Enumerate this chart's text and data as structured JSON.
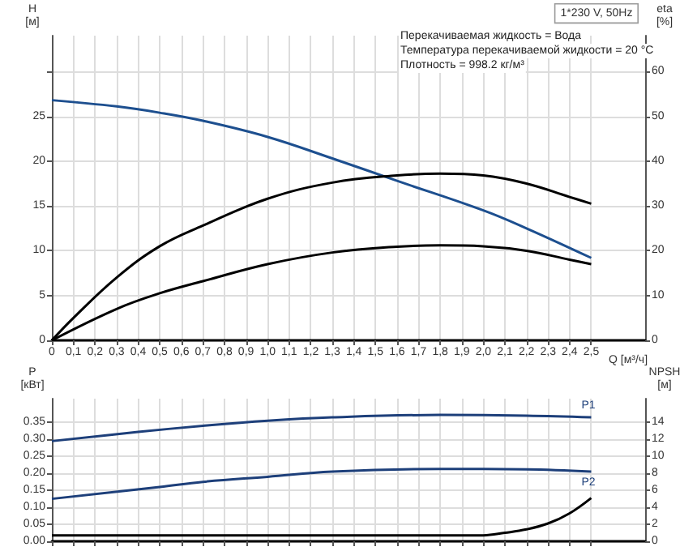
{
  "chart_data": [
    {
      "type": "line",
      "ylabel": "H\n[м]",
      "y2label": "eta\n[%]",
      "xlabel": "Q [м³/ч]",
      "annotations": [
        "1*230 V, 50Hz",
        "Перекачиваемая жидкость = Вода",
        "Температура перекачиваемой жидкости = 20 °C",
        "Плотность = 998.2 кг/м³"
      ],
      "xlim": [
        0,
        2.75
      ],
      "xticks": [
        0,
        {
          "value": 0.1,
          "label": "0,1"
        },
        {
          "value": 0.2,
          "label": "0,2"
        },
        {
          "value": 0.3,
          "label": "0,3"
        },
        {
          "value": 0.4,
          "label": "0,4"
        },
        {
          "value": 0.5,
          "label": "0,5"
        },
        {
          "value": 0.6,
          "label": "0,6"
        },
        {
          "value": 0.7,
          "label": "0,7"
        },
        {
          "value": 0.8,
          "label": "0,8"
        },
        {
          "value": 0.9,
          "label": "0,9"
        },
        {
          "value": 1.0,
          "label": "1,0"
        },
        {
          "value": 1.1,
          "label": "1,1"
        },
        {
          "value": 1.2,
          "label": "1,2"
        },
        {
          "value": 1.3,
          "label": "1,3"
        },
        {
          "value": 1.4,
          "label": "1,4"
        },
        {
          "value": 1.5,
          "label": "1,5"
        },
        {
          "value": 1.6,
          "label": "1,6"
        },
        {
          "value": 1.7,
          "label": "1,7"
        },
        {
          "value": 1.8,
          "label": "1,8"
        },
        {
          "value": 1.9,
          "label": "1,9"
        },
        {
          "value": 2.0,
          "label": "2,0"
        },
        {
          "value": 2.1,
          "label": "2,1"
        },
        {
          "value": 2.2,
          "label": "2,2"
        },
        {
          "value": 2.3,
          "label": "2,3"
        },
        {
          "value": 2.4,
          "label": "2,4"
        },
        {
          "value": 2.5,
          "label": "2,5"
        }
      ],
      "ylim": [
        0,
        34
      ],
      "yticks": [
        0,
        5,
        10,
        15,
        20,
        25,
        {
          "value": 30,
          "label": null
        }
      ],
      "y2lim": [
        0,
        68
      ],
      "y2ticks": [
        0,
        10,
        20,
        30,
        40,
        50,
        60
      ],
      "grid": true,
      "legend": false,
      "marker": "none",
      "line_style": "solid",
      "series": [
        {
          "color": "#1d4f8f",
          "x": [
            0,
            0.3,
            0.5,
            0.7,
            1.0,
            1.3,
            1.6,
            2.0,
            2.2,
            2.5
          ],
          "values": [
            26.8,
            26.1,
            25.4,
            24.5,
            22.7,
            20.3,
            17.8,
            14.5,
            12.5,
            9.2
          ]
        },
        {
          "color": "#000000",
          "axis": "y2",
          "x": [
            0,
            0.1,
            0.3,
            0.5,
            0.7,
            1.0,
            1.3,
            1.6,
            1.8,
            2.0,
            2.2,
            2.4,
            2.5
          ],
          "values": [
            0,
            5,
            14,
            21,
            25.6,
            31.6,
            35.2,
            36.8,
            37.2,
            36.8,
            35,
            32,
            30.5
          ]
        },
        {
          "color": "#000000",
          "axis": "y2",
          "x": [
            0,
            0.3,
            0.5,
            0.7,
            1.0,
            1.3,
            1.6,
            1.8,
            2.0,
            2.2,
            2.4,
            2.5
          ],
          "values": [
            0,
            7,
            10.5,
            13.2,
            17,
            19.6,
            20.9,
            21.2,
            21,
            20,
            18,
            17
          ]
        }
      ]
    },
    {
      "type": "line",
      "ylabel": "P\n[кВт]",
      "y2label": "NPSH\n[м]",
      "tick_labels": "y",
      "xlim": [
        0,
        2.75
      ],
      "xticks": [
        0,
        0.1,
        0.2,
        0.3,
        0.4,
        0.5,
        0.6,
        0.7,
        0.8,
        0.9,
        1.0,
        1.1,
        1.2,
        1.3,
        1.4,
        1.5,
        1.6,
        1.7,
        1.8,
        1.9,
        2.0,
        2.1,
        2.2,
        2.3,
        2.4,
        2.5
      ],
      "ylim": [
        0,
        0.42
      ],
      "yticks": [
        {
          "value": 0,
          "label": "0.00"
        },
        {
          "value": 0.05,
          "label": "0.05"
        },
        {
          "value": 0.1,
          "label": "0.10"
        },
        {
          "value": 0.15,
          "label": "0.15"
        },
        {
          "value": 0.2,
          "label": "0.20"
        },
        {
          "value": 0.25,
          "label": "0.25"
        },
        {
          "value": 0.3,
          "label": "0.30"
        },
        {
          "value": 0.35,
          "label": "0.35"
        }
      ],
      "y2lim": [
        0,
        16.8
      ],
      "y2ticks": [
        0,
        2,
        4,
        6,
        8,
        10,
        12,
        14
      ],
      "grid": true,
      "legend": false,
      "marker": "none",
      "line_style": "solid",
      "series": [
        {
          "name": "P1",
          "color": "#1d3f7a",
          "x": [
            0,
            0.4,
            0.7,
            1.0,
            1.3,
            1.8,
            2.2,
            2.5
          ],
          "values": [
            0.295,
            0.322,
            0.34,
            0.355,
            0.365,
            0.372,
            0.37,
            0.365
          ]
        },
        {
          "name": "P2",
          "color": "#1d3f7a",
          "x": [
            0,
            0.5,
            0.7,
            1.0,
            1.3,
            1.8,
            2.2,
            2.5
          ],
          "values": [
            0.125,
            0.16,
            0.175,
            0.19,
            0.205,
            0.213,
            0.212,
            0.205
          ]
        },
        {
          "color": "#000000",
          "axis": "y2",
          "x": [
            0,
            1.0,
            2.0,
            2.1,
            2.2,
            2.3,
            2.4,
            2.5
          ],
          "values": [
            0.7,
            0.7,
            0.7,
            1.0,
            1.4,
            2.1,
            3.3,
            5.1
          ]
        }
      ]
    }
  ]
}
